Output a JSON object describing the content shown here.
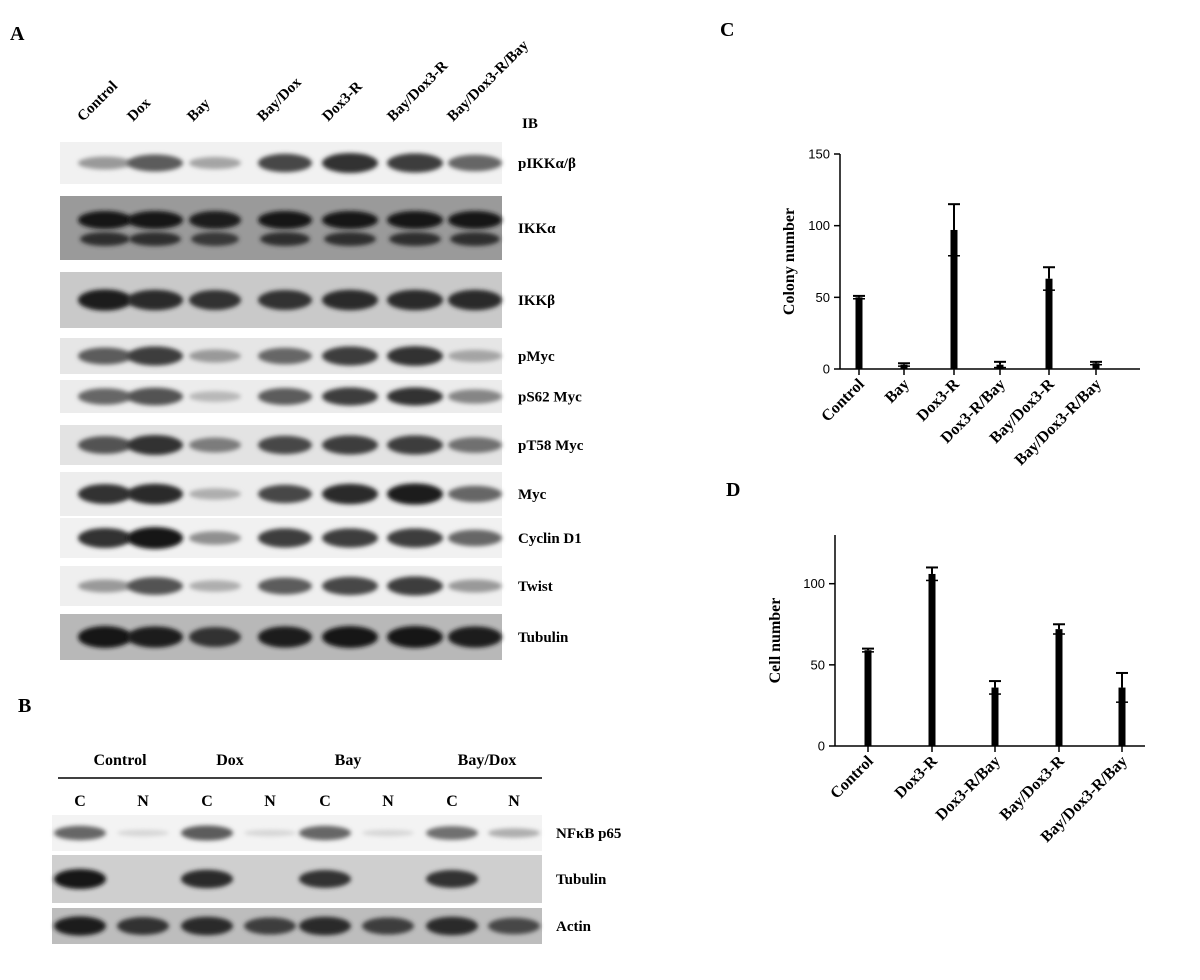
{
  "figure": {
    "panel_letters": [
      "A",
      "B",
      "C",
      "D"
    ]
  },
  "panel_a": {
    "lanes": [
      "Control",
      "Dox",
      "Bay",
      "Bay/Dox",
      "Dox3-R",
      "Bay/Dox3-R",
      "Bay/Dox3-R/Bay"
    ],
    "ib_label": "IB",
    "blots": [
      {
        "label": "pIKKα/β",
        "intensity": [
          0.35,
          0.65,
          0.3,
          0.75,
          0.85,
          0.8,
          0.6
        ],
        "bg": "#f1f1f1",
        "doublet": false
      },
      {
        "label": "IKKα",
        "intensity": [
          1,
          1,
          0.95,
          1,
          1,
          1,
          1
        ],
        "bg": "#9a9a9a",
        "doublet": true
      },
      {
        "label": "IKKβ",
        "intensity": [
          0.95,
          0.9,
          0.85,
          0.85,
          0.9,
          0.9,
          0.9
        ],
        "bg": "#c9c9c9",
        "doublet": false
      },
      {
        "label": "pMyc",
        "intensity": [
          0.65,
          0.8,
          0.35,
          0.6,
          0.8,
          0.85,
          0.3
        ],
        "bg": "#e6e6e6",
        "doublet": false
      },
      {
        "label": "pS62 Myc",
        "intensity": [
          0.6,
          0.7,
          0.2,
          0.65,
          0.8,
          0.85,
          0.45
        ],
        "bg": "#ececec",
        "doublet": false
      },
      {
        "label": "pT58 Myc",
        "intensity": [
          0.7,
          0.85,
          0.5,
          0.75,
          0.8,
          0.8,
          0.55
        ],
        "bg": "#e3e3e3",
        "doublet": false
      },
      {
        "label": "Myc",
        "intensity": [
          0.85,
          0.9,
          0.25,
          0.75,
          0.9,
          0.95,
          0.6
        ],
        "bg": "#ededed",
        "doublet": false
      },
      {
        "label": "Cyclin D1",
        "intensity": [
          0.85,
          1,
          0.4,
          0.8,
          0.8,
          0.8,
          0.6
        ],
        "bg": "#f1f1f1",
        "doublet": false
      },
      {
        "label": "Twist",
        "intensity": [
          0.35,
          0.7,
          0.25,
          0.65,
          0.75,
          0.8,
          0.35
        ],
        "bg": "#efefef",
        "doublet": false
      },
      {
        "label": "Tubulin",
        "intensity": [
          1,
          0.95,
          0.85,
          0.95,
          1,
          1,
          0.95
        ],
        "bg": "#b8b8b8",
        "doublet": false
      }
    ]
  },
  "panel_b": {
    "groups": [
      "Control",
      "Dox",
      "Bay",
      "Bay/Dox"
    ],
    "fractions": [
      "C",
      "N",
      "C",
      "N",
      "C",
      "N",
      "C",
      "N"
    ],
    "blots": [
      {
        "label": "NFκB p65",
        "intensity": [
          0.6,
          0.05,
          0.65,
          0.05,
          0.6,
          0.05,
          0.55,
          0.25
        ],
        "bg": "#f3f3f3"
      },
      {
        "label": "Tubulin",
        "intensity": [
          1,
          0.02,
          0.9,
          0.02,
          0.85,
          0.02,
          0.85,
          0.02
        ],
        "bg": "#cfcfcf"
      },
      {
        "label": "Actin",
        "intensity": [
          0.95,
          0.85,
          0.9,
          0.8,
          0.9,
          0.8,
          0.9,
          0.75
        ],
        "bg": "#bdbdbd"
      }
    ]
  },
  "chart_data": [
    {
      "type": "bar",
      "panel": "C",
      "categories": [
        "Control",
        "Bay",
        "Dox3-R",
        "Dox3-R/Bay",
        "Bay/Dox3-R",
        "Bay/Dox3-R/Bay"
      ],
      "values": [
        50,
        3,
        97,
        3,
        63,
        4
      ],
      "errors": [
        1,
        1,
        18,
        2,
        8,
        1
      ],
      "ylabel": "Colony number",
      "ylim": [
        0,
        150
      ],
      "yticks": [
        "0",
        "50",
        "100",
        "150"
      ]
    },
    {
      "type": "bar",
      "panel": "D",
      "categories": [
        "Control",
        "Dox3-R",
        "Dox3-R/Bay",
        "Bay/Dox3-R",
        "Bay/Dox3-R/Bay"
      ],
      "values": [
        59,
        106,
        36,
        72,
        36
      ],
      "errors": [
        1,
        4,
        4,
        3,
        9
      ],
      "ylabel": "Cell number",
      "ylim": [
        0,
        130
      ],
      "yticks": [
        "0",
        "50",
        "100"
      ]
    }
  ]
}
